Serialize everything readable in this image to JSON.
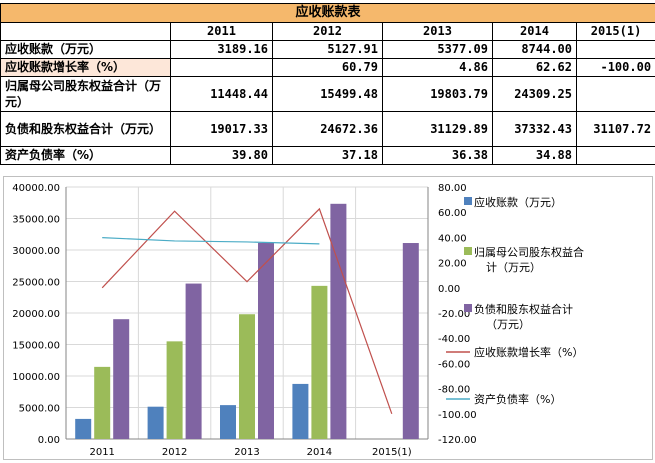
{
  "table": {
    "title": "应收账款表",
    "columns": [
      "",
      "2011",
      "2012",
      "2013",
      "2014",
      "2015(1)"
    ],
    "rows": [
      {
        "label": "应收账款（万元）",
        "values": [
          "3189.16",
          "5127.91",
          "5377.09",
          "8744.00",
          ""
        ]
      },
      {
        "label": "应收账款增长率（%）",
        "values": [
          "",
          "60.79",
          "4.86",
          "62.62",
          "-100.00"
        ]
      },
      {
        "label": "归属母公司股东权益合计（万元）",
        "values": [
          "11448.44",
          "15499.48",
          "19803.79",
          "24309.25",
          ""
        ]
      },
      {
        "label": "负债和股东权益合计（万元）",
        "values": [
          "19017.33",
          "24672.36",
          "31129.89",
          "37332.43",
          "31107.72"
        ]
      },
      {
        "label": "资产负债率（%）",
        "values": [
          "39.80",
          "37.18",
          "36.38",
          "34.88",
          ""
        ]
      }
    ]
  },
  "chart_data": {
    "type": "bar",
    "categories": [
      "2011",
      "2012",
      "2013",
      "2014",
      "2015(1)"
    ],
    "ylim": [
      0,
      40000
    ],
    "y2lim": [
      -120,
      80
    ],
    "yticks": [
      "0.00",
      "5000.00",
      "10000.00",
      "15000.00",
      "20000.00",
      "25000.00",
      "30000.00",
      "35000.00",
      "40000.00"
    ],
    "y2ticks": [
      "-120.00",
      "-100.00",
      "-80.00",
      "-60.00",
      "-40.00",
      "-20.00",
      "0.00",
      "20.00",
      "40.00",
      "60.00",
      "80.00"
    ],
    "grid": true,
    "legend_position": "right",
    "series": [
      {
        "name": "应收账款（万元）",
        "kind": "bar",
        "axis": "left",
        "color": "#4f81bd",
        "values": [
          3189.16,
          5127.91,
          5377.09,
          8744.0,
          null
        ]
      },
      {
        "name": "归属母公司股东权益合计（万元）",
        "kind": "bar",
        "axis": "left",
        "color": "#9bbb59",
        "values": [
          11448.44,
          15499.48,
          19803.79,
          24309.25,
          null
        ]
      },
      {
        "name": "负债和股东权益合计（万元）",
        "kind": "bar",
        "axis": "left",
        "color": "#8064a2",
        "values": [
          19017.33,
          24672.36,
          31129.89,
          37332.43,
          31107.72
        ]
      },
      {
        "name": "应收账款增长率（%）",
        "kind": "line",
        "axis": "right",
        "color": "#c0504d",
        "values": [
          0,
          60.79,
          4.86,
          62.62,
          -100.0
        ]
      },
      {
        "name": "资产负债率（%）",
        "kind": "line",
        "axis": "right",
        "color": "#4bacc6",
        "values": [
          39.8,
          37.18,
          36.38,
          34.88,
          null
        ]
      }
    ]
  }
}
